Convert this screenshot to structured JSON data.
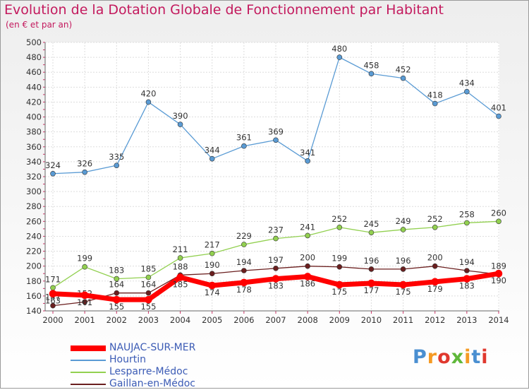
{
  "header": {
    "title": "Evolution de la Dotation Globale de Fonctionnement par Habitant",
    "subtitle": "(en € et par an)"
  },
  "logo": {
    "text": "Proxiti",
    "colors": [
      "#4a8fd1",
      "#f59a23",
      "#e0382e",
      "#5fb83a",
      "#f59a23",
      "#4a8fd1",
      "#e0382e"
    ]
  },
  "chart_data": {
    "type": "line",
    "x": [
      "2000",
      "2001",
      "2002",
      "2003",
      "2004",
      "2005",
      "2006",
      "2007",
      "2008",
      "2009",
      "2010",
      "2011",
      "2012",
      "2013",
      "2014"
    ],
    "ylim": [
      140,
      500
    ],
    "y_ticks": [
      140,
      160,
      180,
      200,
      220,
      240,
      260,
      280,
      300,
      320,
      340,
      360,
      380,
      400,
      420,
      440,
      460,
      480,
      500
    ],
    "grid": true,
    "legend_position": "bottom-left",
    "series": [
      {
        "name": "NAUJAC-SUR-MER",
        "color": "#ff0000",
        "values": [
          163,
          161,
          155,
          155,
          185,
          174,
          178,
          183,
          186,
          175,
          177,
          175,
          179,
          183,
          190
        ]
      },
      {
        "name": "Hourtin",
        "color": "#5a9bd4",
        "values": [
          324,
          326,
          335,
          420,
          390,
          344,
          361,
          369,
          341,
          480,
          458,
          452,
          418,
          434,
          401
        ]
      },
      {
        "name": "Lesparre-Médoc",
        "color": "#92d050",
        "values": [
          171,
          199,
          183,
          185,
          211,
          217,
          229,
          237,
          241,
          252,
          245,
          249,
          252,
          258,
          260
        ]
      },
      {
        "name": "Gaillan-en-Médoc",
        "color": "#6b1f1f",
        "values": [
          147,
          152,
          164,
          164,
          188,
          190,
          194,
          197,
          200,
          199,
          196,
          196,
          200,
          194,
          189
        ]
      }
    ]
  }
}
